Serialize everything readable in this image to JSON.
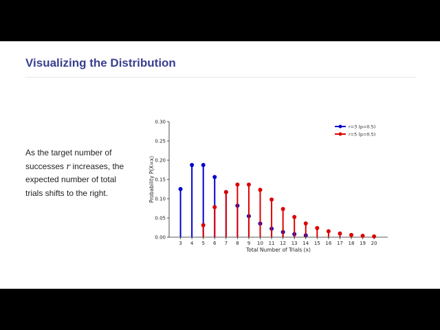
{
  "slide": {
    "title": "Visualizing the Distribution",
    "body_before": "As the target number of successes ",
    "body_var": "r",
    "body_after": " increases, the expected number of total trials shifts to the right."
  },
  "chart_data": {
    "type": "stem",
    "xlabel": "Total Number of Trials (x)",
    "ylabel": "Probability P(X=x)",
    "ylim": [
      0,
      0.3
    ],
    "yticks": [
      0.0,
      0.05,
      0.1,
      0.15,
      0.2,
      0.25,
      0.3
    ],
    "ytick_labels": [
      "0.00",
      "0.05",
      "0.10",
      "0.15",
      "0.20",
      "0.25",
      "0.30"
    ],
    "xlim": [
      2,
      21.2
    ],
    "xticks": [
      3,
      4,
      5,
      6,
      7,
      8,
      9,
      10,
      11,
      12,
      13,
      14,
      15,
      16,
      17,
      18,
      19,
      20
    ],
    "xtick_labels": [
      "3",
      "4",
      "5",
      "6",
      "7",
      "8",
      "9",
      "10",
      "11",
      "12",
      "13",
      "14",
      "15",
      "16",
      "17",
      "18",
      "19",
      "20"
    ],
    "legend_position": "top-right",
    "series": [
      {
        "name": "r=3 (p=0.5)",
        "color": "#0000cc",
        "x": [
          3,
          4,
          5,
          6,
          7,
          8,
          9,
          10,
          11,
          12,
          13,
          14
        ],
        "y": [
          0.125,
          0.1875,
          0.1875,
          0.15625,
          0.1172,
          0.082,
          0.0547,
          0.0352,
          0.022,
          0.0134,
          0.0081,
          0.0048
        ]
      },
      {
        "name": "r=5 (p=0.5)",
        "color": "#dd0000",
        "x": [
          5,
          6,
          7,
          8,
          9,
          10,
          11,
          12,
          13,
          14,
          15,
          16,
          17,
          18,
          19,
          20
        ],
        "y": [
          0.0313,
          0.0781,
          0.1172,
          0.1367,
          0.1367,
          0.123,
          0.0977,
          0.0733,
          0.0524,
          0.0358,
          0.0237,
          0.0153,
          0.0096,
          0.0059,
          0.0036,
          0.0021
        ]
      }
    ]
  }
}
